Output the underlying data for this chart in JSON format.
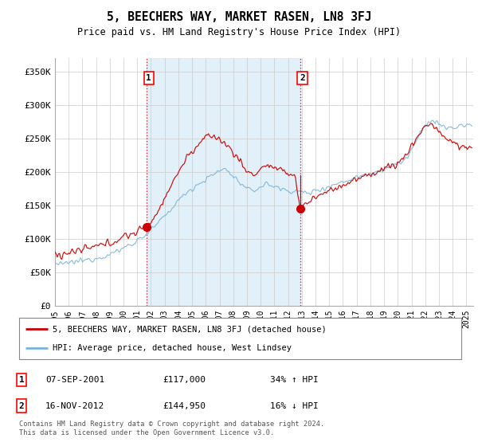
{
  "title": "5, BEECHERS WAY, MARKET RASEN, LN8 3FJ",
  "subtitle": "Price paid vs. HM Land Registry's House Price Index (HPI)",
  "ylabel_ticks": [
    "£0",
    "£50K",
    "£100K",
    "£150K",
    "£200K",
    "£250K",
    "£300K",
    "£350K"
  ],
  "ytick_values": [
    0,
    50000,
    100000,
    150000,
    200000,
    250000,
    300000,
    350000
  ],
  "ylim": [
    0,
    370000
  ],
  "xlim_start": 1995.0,
  "xlim_end": 2025.5,
  "sale1_date": 2001.69,
  "sale1_price": 117000,
  "sale1_label": "1",
  "sale2_date": 2012.88,
  "sale2_price": 144950,
  "sale2_label": "2",
  "hpi_color": "#7ab4d8",
  "hpi_fill_color": "#d6eaf8",
  "price_color": "#cc0000",
  "sale_marker_color": "#cc0000",
  "vline_color": "#cc0000",
  "legend_entries": [
    "5, BEECHERS WAY, MARKET RASEN, LN8 3FJ (detached house)",
    "HPI: Average price, detached house, West Lindsey"
  ],
  "table_rows": [
    {
      "num": "1",
      "date": "07-SEP-2001",
      "price": "£117,000",
      "change": "34% ↑ HPI"
    },
    {
      "num": "2",
      "date": "16-NOV-2012",
      "price": "£144,950",
      "change": "16% ↓ HPI"
    }
  ],
  "footnote": "Contains HM Land Registry data © Crown copyright and database right 2024.\nThis data is licensed under the Open Government Licence v3.0.",
  "background_color": "#ffffff",
  "grid_color": "#cccccc"
}
